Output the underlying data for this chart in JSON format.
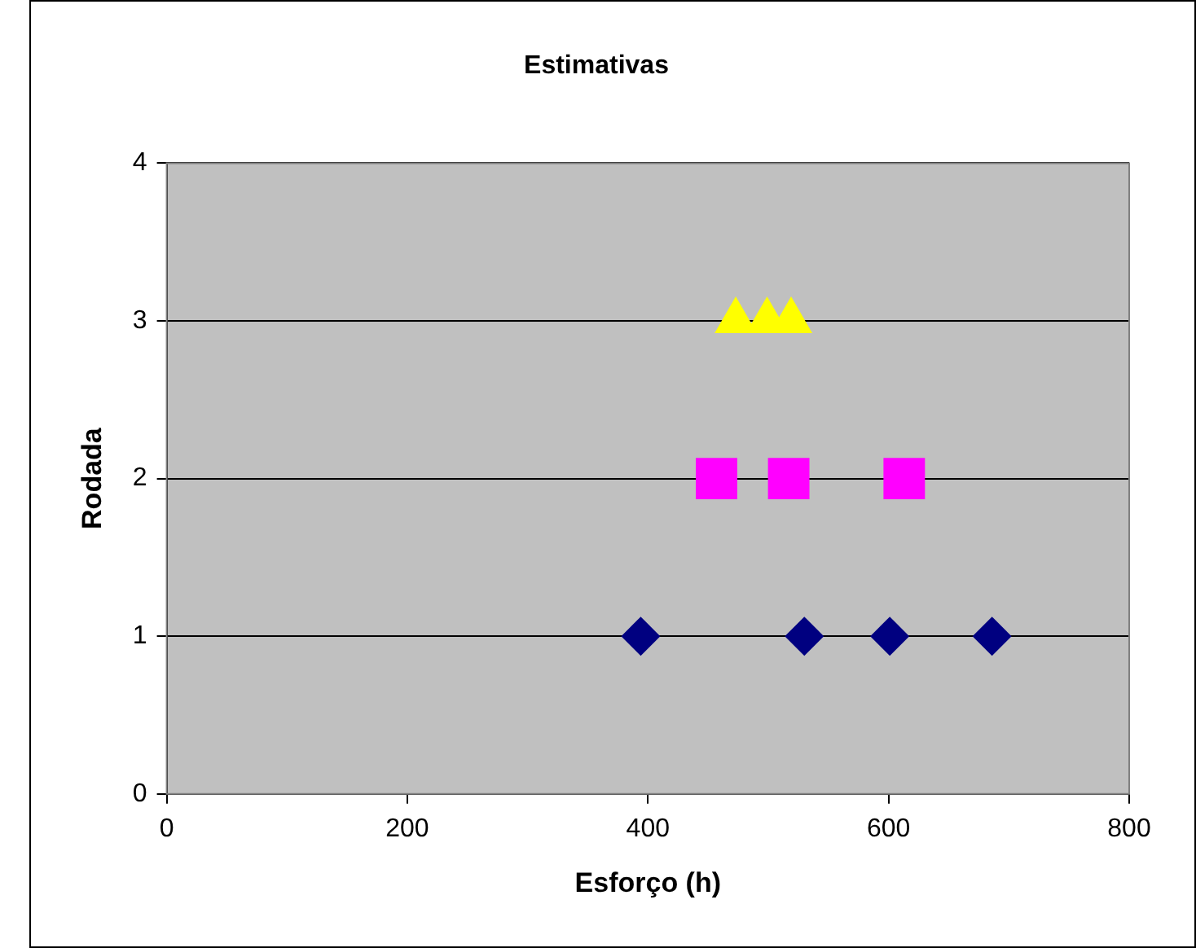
{
  "chart_data": {
    "type": "scatter",
    "title": "Estimativas",
    "xlabel": "Esforço (h)",
    "ylabel": "Rodada",
    "series": [
      {
        "color": "#000080",
        "marker": "diamond",
        "x": [
          394,
          530,
          601,
          686
        ],
        "values": [
          1,
          1,
          1,
          1
        ]
      },
      {
        "color": "#ff00ff",
        "marker": "square",
        "x": [
          457,
          517,
          613
        ],
        "values": [
          2,
          2,
          2
        ]
      },
      {
        "color": "#ffff00",
        "marker": "triangle",
        "x": [
          473,
          499,
          519
        ],
        "values": [
          3,
          3,
          3
        ]
      }
    ],
    "xlim": [
      0,
      800
    ],
    "xticks": [
      0,
      200,
      400,
      600,
      800
    ],
    "ylim": [
      0,
      4
    ],
    "yticks": [
      0,
      1,
      2,
      3,
      4
    ],
    "grid": "y",
    "legend": false
  }
}
